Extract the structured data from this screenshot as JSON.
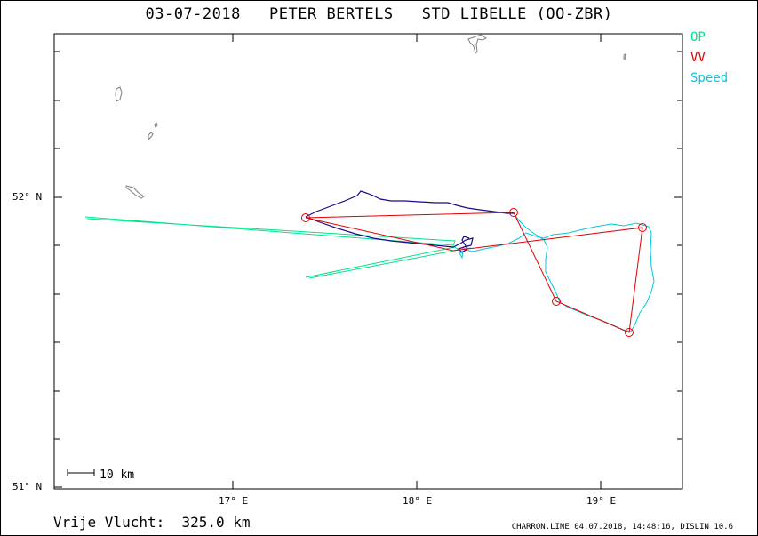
{
  "title": "03-07-2018   PETER BERTELS   STD LIBELLE (OO-ZBR)",
  "legend": [
    {
      "label": "OP",
      "color": "#00e28a"
    },
    {
      "label": "VV",
      "color": "#e00000"
    },
    {
      "label": "Speed",
      "color": "#00c8e0"
    }
  ],
  "axes": {
    "lat_labels": [
      "52° N",
      "51° N"
    ],
    "lon_labels": [
      "17° E",
      "18° E",
      "19° E"
    ]
  },
  "scale": {
    "label": "10 km"
  },
  "footer": {
    "distance": "Vrije Vlucht:  325.0 km",
    "stamp": "CHARRON.LINE 04.07.2018, 14:48:16, DISLIN 10.6"
  },
  "colors": {
    "track_dark": "#1a0a8c",
    "track_op": "#00e28a",
    "track_vv": "#e00000",
    "track_speed": "#00c8e0",
    "coast": "#808080"
  }
}
